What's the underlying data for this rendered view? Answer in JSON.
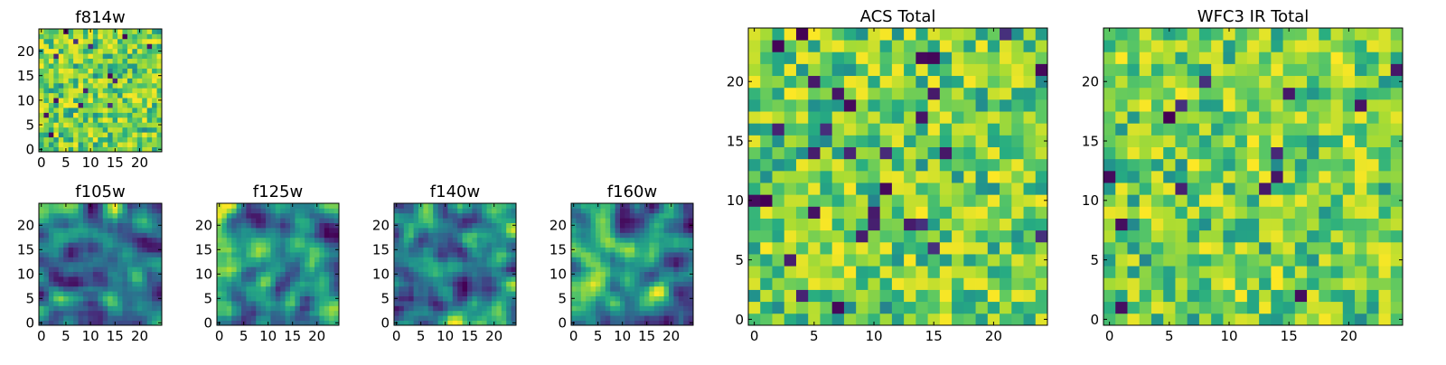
{
  "chart_data": [
    {
      "type": "heatmap",
      "title": "f814w",
      "grid_size": 25,
      "xlim": [
        -0.5,
        24.5
      ],
      "ylim": [
        -0.5,
        24.5
      ],
      "xticks": [
        0,
        5,
        10,
        15,
        20
      ],
      "yticks": [
        0,
        5,
        10,
        15,
        20
      ],
      "xtick_labels": [
        "0",
        "5",
        "10",
        "15",
        "20"
      ],
      "ytick_labels": [
        "0",
        "5",
        "10",
        "15",
        "20"
      ],
      "colormap": "viridis",
      "pattern": "noise",
      "seed": 11
    },
    {
      "type": "heatmap",
      "title": "f105w",
      "grid_size": 25,
      "xlim": [
        -0.5,
        24.5
      ],
      "ylim": [
        -0.5,
        24.5
      ],
      "xticks": [
        0,
        5,
        10,
        15,
        20
      ],
      "yticks": [
        0,
        5,
        10,
        15,
        20
      ],
      "xtick_labels": [
        "0",
        "5",
        "10",
        "15",
        "20"
      ],
      "ytick_labels": [
        "0",
        "5",
        "10",
        "15",
        "20"
      ],
      "colormap": "viridis",
      "pattern": "smooth",
      "seed": 23
    },
    {
      "type": "heatmap",
      "title": "f125w",
      "grid_size": 25,
      "xlim": [
        -0.5,
        24.5
      ],
      "ylim": [
        -0.5,
        24.5
      ],
      "xticks": [
        0,
        5,
        10,
        15,
        20
      ],
      "yticks": [
        0,
        5,
        10,
        15,
        20
      ],
      "xtick_labels": [
        "0",
        "5",
        "10",
        "15",
        "20"
      ],
      "ytick_labels": [
        "0",
        "5",
        "10",
        "15",
        "20"
      ],
      "colormap": "viridis",
      "pattern": "smooth",
      "seed": 37
    },
    {
      "type": "heatmap",
      "title": "f140w",
      "grid_size": 25,
      "xlim": [
        -0.5,
        24.5
      ],
      "ylim": [
        -0.5,
        24.5
      ],
      "xticks": [
        0,
        5,
        10,
        15,
        20
      ],
      "yticks": [
        0,
        5,
        10,
        15,
        20
      ],
      "xtick_labels": [
        "0",
        "5",
        "10",
        "15",
        "20"
      ],
      "ytick_labels": [
        "0",
        "5",
        "10",
        "15",
        "20"
      ],
      "colormap": "viridis",
      "pattern": "smooth",
      "seed": 41
    },
    {
      "type": "heatmap",
      "title": "f160w",
      "grid_size": 25,
      "xlim": [
        -0.5,
        24.5
      ],
      "ylim": [
        -0.5,
        24.5
      ],
      "xticks": [
        0,
        5,
        10,
        15,
        20
      ],
      "yticks": [
        0,
        5,
        10,
        15,
        20
      ],
      "xtick_labels": [
        "0",
        "5",
        "10",
        "15",
        "20"
      ],
      "ytick_labels": [
        "0",
        "5",
        "10",
        "15",
        "20"
      ],
      "colormap": "viridis",
      "pattern": "smooth",
      "seed": 53
    },
    {
      "type": "heatmap",
      "title": "ACS Total",
      "grid_size": 25,
      "xlim": [
        -0.5,
        24.5
      ],
      "ylim": [
        -0.5,
        24.5
      ],
      "xticks": [
        0,
        5,
        10,
        15,
        20
      ],
      "yticks": [
        0,
        5,
        10,
        15,
        20
      ],
      "xtick_labels": [
        "0",
        "5",
        "10",
        "15",
        "20"
      ],
      "ytick_labels": [
        "0",
        "5",
        "10",
        "15",
        "20"
      ],
      "colormap": "viridis",
      "pattern": "noise",
      "seed": 67
    },
    {
      "type": "heatmap",
      "title": "WFC3 IR Total",
      "grid_size": 25,
      "xlim": [
        -0.5,
        24.5
      ],
      "ylim": [
        -0.5,
        24.5
      ],
      "xticks": [
        0,
        5,
        10,
        15,
        20
      ],
      "yticks": [
        0,
        5,
        10,
        15,
        20
      ],
      "xtick_labels": [
        "0",
        "5",
        "10",
        "15",
        "20"
      ],
      "ytick_labels": [
        "0",
        "5",
        "10",
        "15",
        "20"
      ],
      "colormap": "viridis",
      "pattern": "noise",
      "seed": 79
    }
  ]
}
